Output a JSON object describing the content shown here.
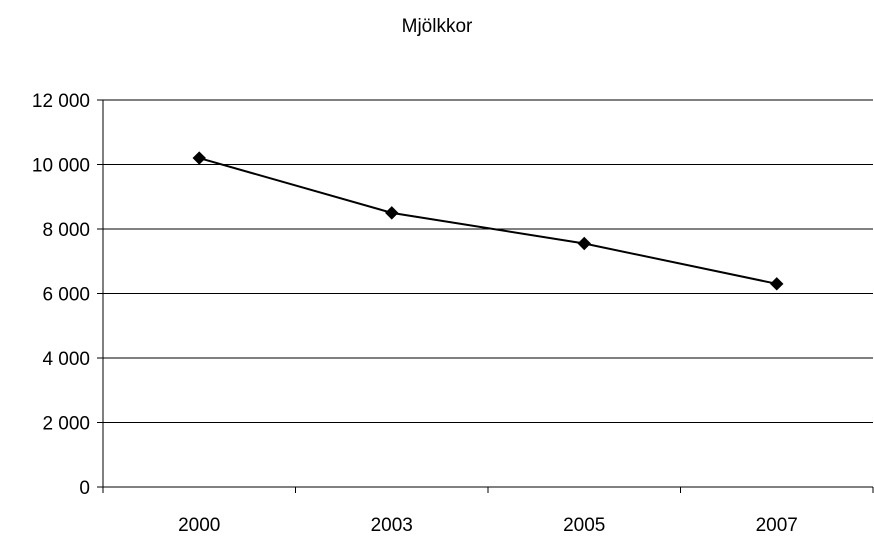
{
  "chart_data": {
    "type": "line",
    "title": "Mjölkkor",
    "xlabel": "",
    "ylabel": "",
    "categories": [
      "2000",
      "2003",
      "2005",
      "2007"
    ],
    "series": [
      {
        "values": [
          10200,
          8500,
          7550,
          6300
        ]
      }
    ],
    "ylim": [
      0,
      12000
    ],
    "yticks": [
      0,
      2000,
      4000,
      6000,
      8000,
      10000,
      12000
    ],
    "ytick_labels": [
      "0",
      "2 000",
      "4 000",
      "6 000",
      "8 000",
      "10 000",
      "12 000"
    ],
    "grid": true,
    "legend": "none",
    "colors": {
      "line": "#000000",
      "grid": "#000000",
      "axis": "#000000"
    }
  }
}
